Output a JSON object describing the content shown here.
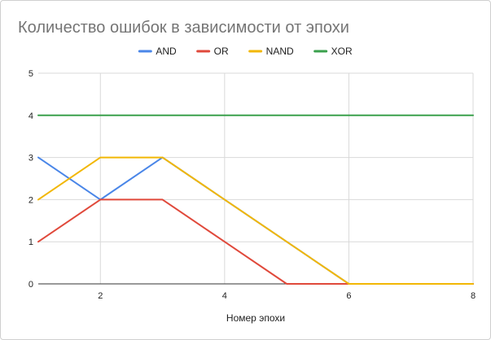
{
  "chart_data": {
    "type": "line",
    "title": "Количество ошибок в зависимости от эпохи",
    "xlabel": "Номер эпохи",
    "ylabel": "",
    "xlim": [
      1,
      8
    ],
    "ylim": [
      0,
      5
    ],
    "x_ticks": [
      2,
      4,
      6,
      8
    ],
    "y_ticks": [
      0,
      1,
      2,
      3,
      4,
      5
    ],
    "grid": true,
    "legend_position": "top",
    "x": [
      1,
      2,
      3,
      4,
      5,
      6,
      7,
      8
    ],
    "series": [
      {
        "name": "AND",
        "color": "#4a86e8",
        "values": [
          3,
          2,
          3,
          2,
          1,
          0,
          0,
          0
        ]
      },
      {
        "name": "OR",
        "color": "#e0493b",
        "values": [
          1,
          2,
          2,
          1,
          0,
          0,
          0,
          0
        ]
      },
      {
        "name": "NAND",
        "color": "#f2b705",
        "values": [
          2,
          3,
          3,
          2,
          1,
          0,
          0,
          0
        ]
      },
      {
        "name": "XOR",
        "color": "#3aa04c",
        "values": [
          4,
          4,
          4,
          4,
          4,
          4,
          4,
          4
        ]
      }
    ]
  }
}
